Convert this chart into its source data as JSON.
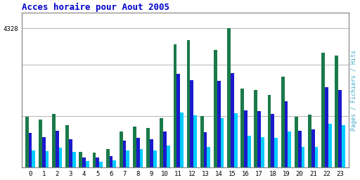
{
  "title": "Acces horaire pour Aout 2005",
  "title_color": "#0000cc",
  "hours": [
    0,
    1,
    2,
    3,
    4,
    5,
    6,
    7,
    8,
    9,
    10,
    11,
    12,
    13,
    14,
    15,
    16,
    17,
    18,
    19,
    20,
    21,
    22,
    23
  ],
  "hits": [
    1580,
    1480,
    1650,
    1320,
    480,
    460,
    570,
    1120,
    1260,
    1220,
    1540,
    3820,
    3960,
    1600,
    3640,
    4328,
    2450,
    2400,
    2250,
    2820,
    1580,
    1630,
    3560,
    3480
  ],
  "fichiers": [
    1080,
    950,
    1130,
    870,
    310,
    300,
    360,
    820,
    920,
    870,
    1120,
    2900,
    2720,
    1100,
    2680,
    2920,
    1760,
    1740,
    1670,
    2050,
    1140,
    1170,
    2500,
    2400
  ],
  "pages": [
    520,
    500,
    620,
    480,
    190,
    185,
    220,
    530,
    560,
    530,
    670,
    1700,
    1620,
    630,
    1540,
    1680,
    980,
    940,
    920,
    1120,
    640,
    640,
    1360,
    1320
  ],
  "color_hits": "#1a7a4a",
  "color_fichiers": "#1a1acc",
  "color_pages": "#00ccff",
  "ylabel_right": "Pages / Fichiers / Hits",
  "ylabel_right_color": "#44aacc",
  "ylim_max": 4800,
  "grid_lines": [
    1600,
    3200
  ],
  "ytick_val": 4328,
  "bg_color": "#ffffff",
  "border_color": "#888888",
  "title_fontsize": 9,
  "tick_fontsize": 6.5,
  "bar_width": 0.25
}
